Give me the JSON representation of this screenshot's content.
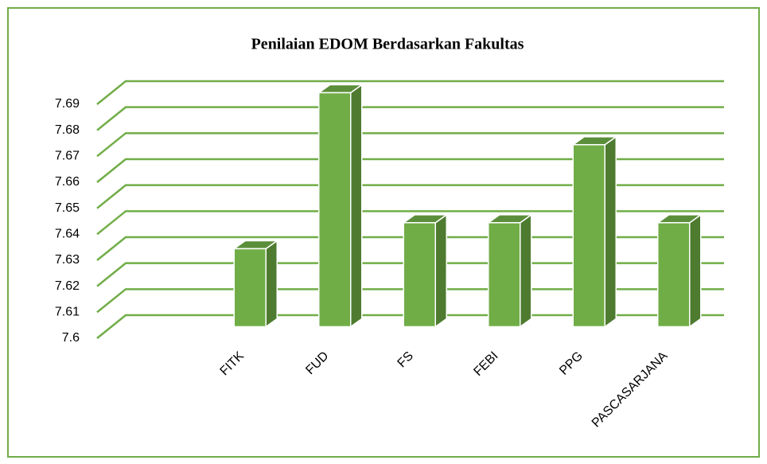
{
  "chart_data": {
    "type": "bar3d",
    "title": "Penilaian EDOM Berdasarkan Fakultas",
    "categories": [
      "FITK",
      "FUD",
      "FS",
      "FEBI",
      "PPG",
      "PASCASARJANA"
    ],
    "values": [
      7.63,
      7.69,
      7.64,
      7.64,
      7.67,
      7.64
    ],
    "color": "#70ad47",
    "ylim": [
      7.6,
      7.69
    ],
    "yticks": [
      7.6,
      7.61,
      7.62,
      7.63,
      7.64,
      7.65,
      7.66,
      7.67,
      7.68,
      7.69
    ],
    "grid": true
  }
}
